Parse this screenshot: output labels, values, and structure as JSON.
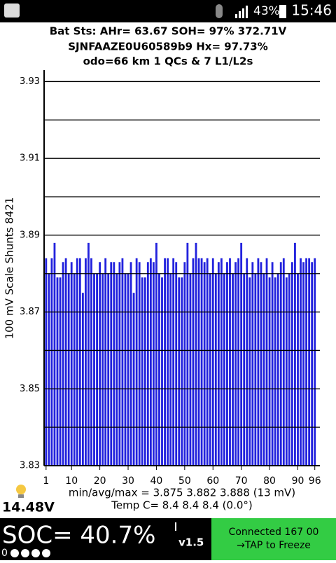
{
  "status_bar": {
    "battery": "43%",
    "time": "15:46"
  },
  "header": {
    "line1": "Bat Sts:  AHr= 63.67  SOH= 97%  372.71V",
    "line2": "SJNFAAZE0U60589b9   Hx= 97.73%",
    "line3": "odo=66 km  1 QCs  &  7 L1/L2s"
  },
  "chart_data": {
    "type": "bar",
    "y_label": "100 mV Scale   Shunts 8421",
    "color": "#2222dd",
    "x": [
      1,
      2,
      3,
      4,
      5,
      6,
      7,
      8,
      9,
      10,
      11,
      12,
      13,
      14,
      15,
      16,
      17,
      18,
      19,
      20,
      21,
      22,
      23,
      24,
      25,
      26,
      27,
      28,
      29,
      30,
      31,
      32,
      33,
      34,
      35,
      36,
      37,
      38,
      39,
      40,
      41,
      42,
      43,
      44,
      45,
      46,
      47,
      48,
      49,
      50,
      51,
      52,
      53,
      54,
      55,
      56,
      57,
      58,
      59,
      60,
      61,
      62,
      63,
      64,
      65,
      66,
      67,
      68,
      69,
      70,
      71,
      72,
      73,
      74,
      75,
      76,
      77,
      78,
      79,
      80,
      81,
      82,
      83,
      84,
      85,
      86,
      87,
      88,
      89,
      90,
      91,
      92,
      93,
      94,
      95,
      96
    ],
    "values": [
      3.884,
      3.88,
      3.884,
      3.888,
      3.879,
      3.879,
      3.883,
      3.884,
      3.88,
      3.883,
      3.88,
      3.884,
      3.884,
      3.875,
      3.884,
      3.888,
      3.884,
      3.88,
      3.88,
      3.883,
      3.88,
      3.884,
      3.88,
      3.883,
      3.883,
      3.88,
      3.883,
      3.884,
      3.88,
      3.88,
      3.883,
      3.875,
      3.884,
      3.883,
      3.879,
      3.879,
      3.883,
      3.884,
      3.883,
      3.888,
      3.88,
      3.879,
      3.884,
      3.884,
      3.88,
      3.884,
      3.883,
      3.879,
      3.879,
      3.883,
      3.888,
      3.88,
      3.884,
      3.888,
      3.884,
      3.884,
      3.883,
      3.884,
      3.88,
      3.884,
      3.88,
      3.883,
      3.884,
      3.88,
      3.883,
      3.884,
      3.88,
      3.883,
      3.884,
      3.888,
      3.88,
      3.884,
      3.879,
      3.883,
      3.88,
      3.884,
      3.883,
      3.88,
      3.884,
      3.879,
      3.883,
      3.879,
      3.88,
      3.883,
      3.884,
      3.879,
      3.88,
      3.883,
      3.888,
      3.88,
      3.884,
      3.883,
      3.884,
      3.884,
      3.883,
      3.884
    ],
    "xlim": [
      0.3,
      97.8
    ],
    "xticks": [
      1,
      10,
      20,
      30,
      40,
      50,
      60,
      70,
      80,
      90,
      96
    ],
    "ylim": [
      3.83,
      3.933
    ],
    "yticks": [
      3.83,
      3.85,
      3.87,
      3.89,
      3.91,
      3.93
    ],
    "minor_gridlines": [
      3.84,
      3.86,
      3.88,
      3.9,
      3.92
    ],
    "grid": true
  },
  "stats": {
    "line1": "min/avg/max = 3.875 3.882 3.888  (13 mV)",
    "line2": "Temp C= 8.4  8.4  8.4  (0.0°)"
  },
  "voltage": "14.48V",
  "footer": {
    "soc": "SOC= 40.7%",
    "dots": "0",
    "version": "v1.5",
    "status_line1": "Connected 167 00",
    "status_line2": "→TAP to Freeze"
  }
}
